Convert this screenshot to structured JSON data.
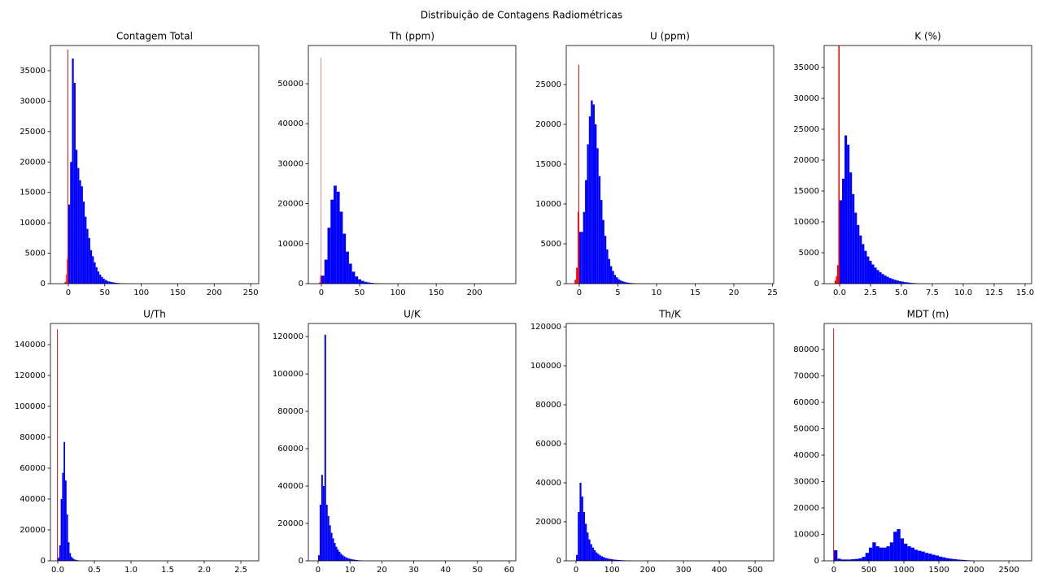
{
  "title": "Distribuição de Contagens Radiométricas",
  "chart_data": [
    {
      "type": "histogram",
      "title": "Contagem Total",
      "xlim": [
        -24.5,
        261
      ],
      "ylim": [
        0,
        39140
      ],
      "xticks": [
        0,
        50,
        100,
        150,
        200,
        250
      ],
      "yticks": [
        0,
        5000,
        10000,
        15000,
        20000,
        25000,
        30000,
        35000
      ],
      "series": [
        {
          "color": "#ff0000",
          "bins": [
            -5,
            -3,
            -2,
            -1,
            0
          ],
          "values": [
            300,
            1500,
            4000,
            38500
          ]
        },
        {
          "color": "#0000ff",
          "bins": [
            0,
            2.5,
            5,
            7.5,
            10,
            12.5,
            15,
            17.5,
            20,
            22.5,
            25,
            27.5,
            30,
            32.5,
            35,
            37.5,
            40,
            42.5,
            45,
            47.5,
            50,
            52.5,
            55,
            57.5,
            60,
            62.5,
            65,
            67.5,
            70,
            72.5,
            75,
            77.5,
            80
          ],
          "values": [
            13000,
            20000,
            37000,
            33000,
            22000,
            19000,
            17000,
            16000,
            13500,
            11000,
            9000,
            7500,
            5500,
            4500,
            3500,
            2700,
            2000,
            1500,
            1100,
            800,
            600,
            450,
            350,
            280,
            220,
            170,
            130,
            100,
            70,
            50,
            30,
            20
          ]
        }
      ]
    },
    {
      "type": "histogram",
      "title": "Th (ppm)",
      "xlim": [
        -17,
        254
      ],
      "ylim": [
        0,
        59550
      ],
      "xticks": [
        0,
        50,
        100,
        150,
        200
      ],
      "yticks": [
        0,
        10000,
        20000,
        30000,
        40000,
        50000
      ],
      "series": [
        {
          "color": "#ff0000",
          "bins": [
            -3,
            -1.5,
            -0.5,
            0
          ],
          "values": [
            300,
            2000,
            56500
          ]
        },
        {
          "color": "#0000ff",
          "bins": [
            0,
            4,
            8,
            12,
            16,
            20,
            24,
            28,
            32,
            36,
            40,
            44,
            48,
            52,
            56,
            60,
            64,
            68,
            72,
            76,
            80
          ],
          "values": [
            2000,
            6000,
            14000,
            21000,
            24500,
            23000,
            18000,
            12500,
            8000,
            5000,
            3000,
            1800,
            1100,
            700,
            450,
            300,
            200,
            120,
            80,
            50
          ]
        }
      ]
    },
    {
      "type": "histogram",
      "title": "U (ppm)",
      "xlim": [
        -1.68,
        25.16
      ],
      "ylim": [
        0,
        29898
      ],
      "xticks": [
        0,
        5,
        10,
        15,
        20,
        25
      ],
      "yticks": [
        0,
        5000,
        10000,
        15000,
        20000,
        25000
      ],
      "series": [
        {
          "color": "#ff0000",
          "bins": [
            -0.6,
            -0.4,
            -0.2,
            -0.1,
            0
          ],
          "values": [
            500,
            2000,
            9000,
            27500
          ]
        },
        {
          "color": "#0000ff",
          "bins": [
            0,
            0.25,
            0.5,
            0.75,
            1.0,
            1.25,
            1.5,
            1.75,
            2.0,
            2.25,
            2.5,
            2.75,
            3.0,
            3.25,
            3.5,
            3.75,
            4.0,
            4.25,
            4.5,
            4.75,
            5.0,
            5.25,
            5.5,
            5.75,
            6.0,
            6.25,
            6.5,
            6.75,
            7.0,
            7.25,
            7.5,
            7.75,
            8.0
          ],
          "values": [
            6500,
            6500,
            9000,
            13000,
            17500,
            21000,
            23000,
            22500,
            20000,
            17000,
            13500,
            10500,
            8000,
            6000,
            4300,
            3100,
            2200,
            1600,
            1100,
            800,
            550,
            400,
            300,
            220,
            160,
            120,
            90,
            70,
            50,
            40,
            30,
            20
          ]
        }
      ]
    },
    {
      "type": "histogram",
      "title": "K (%)",
      "xlim": [
        -1.25,
        15.53
      ],
      "ylim": [
        0,
        38553
      ],
      "xticks": [
        {
          "value": 0,
          "label": "0.0"
        },
        2.5,
        {
          "value": 5,
          "label": "5.0"
        },
        7.5,
        {
          "value": 10,
          "label": "10.0"
        },
        12.5,
        {
          "value": 15,
          "label": "15.0"
        }
      ],
      "yticks": [
        0,
        5000,
        10000,
        15000,
        20000,
        25000,
        30000,
        35000
      ],
      "series": [
        {
          "color": "#ff0000",
          "bins": [
            -0.4,
            -0.3,
            -0.2,
            -0.1,
            0
          ],
          "values": [
            500,
            1200,
            3000,
            38500
          ]
        },
        {
          "color": "#0000ff",
          "bins": [
            0,
            0.2,
            0.4,
            0.6,
            0.8,
            1.0,
            1.2,
            1.4,
            1.6,
            1.8,
            2.0,
            2.2,
            2.4,
            2.6,
            2.8,
            3.0,
            3.2,
            3.4,
            3.6,
            3.8,
            4.0,
            4.2,
            4.4,
            4.6,
            4.8,
            5.0,
            5.2,
            5.4,
            5.6,
            5.8,
            6.0,
            6.2,
            6.4
          ],
          "values": [
            13500,
            17000,
            24000,
            22500,
            18000,
            14500,
            11500,
            9500,
            7800,
            6400,
            5300,
            4400,
            3700,
            3100,
            2600,
            2200,
            1850,
            1550,
            1300,
            1100,
            900,
            750,
            620,
            500,
            400,
            320,
            250,
            200,
            150,
            110,
            80,
            50
          ]
        }
      ]
    },
    {
      "type": "histogram",
      "title": "U/Th",
      "xlim": [
        -0.1,
        2.744
      ],
      "ylim": [
        0,
        153700
      ],
      "xticks": [
        {
          "value": 0,
          "label": "0.0"
        },
        0.5,
        {
          "value": 1,
          "label": "1.0"
        },
        1.5,
        {
          "value": 2,
          "label": "2.0"
        },
        2.5
      ],
      "yticks": [
        0,
        20000,
        40000,
        60000,
        80000,
        100000,
        120000,
        140000
      ],
      "series": [
        {
          "color": "#ff0000",
          "bins": [
            -0.01,
            0
          ],
          "values": [
            150000
          ]
        },
        {
          "color": "#0000ff",
          "bins": [
            0,
            0.02,
            0.04,
            0.06,
            0.08,
            0.1,
            0.12,
            0.14,
            0.16,
            0.18,
            0.2,
            0.22,
            0.24,
            0.26,
            0.28,
            0.3,
            0.32
          ],
          "values": [
            2000,
            10000,
            40000,
            57000,
            77000,
            52000,
            30000,
            12000,
            5000,
            2500,
            1500,
            900,
            600,
            400,
            250,
            150
          ]
        }
      ]
    },
    {
      "type": "histogram",
      "title": "U/K",
      "xlim": [
        -3.06,
        62.04
      ],
      "ylim": [
        0,
        127000
      ],
      "xticks": [
        0,
        10,
        20,
        30,
        40,
        50,
        60
      ],
      "yticks": [
        0,
        20000,
        40000,
        60000,
        80000,
        100000,
        120000
      ],
      "series": [
        {
          "color": "#0000ff",
          "bins": [
            0,
            0.5,
            1,
            1.5,
            2,
            2.5,
            3,
            3.5,
            4,
            4.5,
            5,
            5.5,
            6,
            6.5,
            7,
            7.5,
            8,
            8.5,
            9,
            9.5,
            10,
            10.5,
            11,
            11.5,
            12,
            12.5,
            13,
            13.5,
            14
          ],
          "values": [
            3000,
            30000,
            46000,
            40000,
            121000,
            30000,
            24000,
            19000,
            15000,
            12000,
            9500,
            7500,
            6000,
            4800,
            3800,
            3000,
            2400,
            1900,
            1500,
            1200,
            1000,
            800,
            650,
            500,
            400,
            300,
            220,
            150
          ]
        }
      ]
    },
    {
      "type": "histogram",
      "title": "Th/K",
      "xlim": [
        -27.3,
        552
      ],
      "ylim": [
        0,
        121700
      ],
      "xticks": [
        0,
        100,
        200,
        300,
        400,
        500
      ],
      "yticks": [
        0,
        20000,
        40000,
        60000,
        80000,
        100000,
        120000
      ],
      "series": [
        {
          "color": "#0000ff",
          "bins": [
            0,
            5,
            10,
            15,
            20,
            25,
            30,
            35,
            40,
            45,
            50,
            55,
            60,
            65,
            70,
            75,
            80,
            85,
            90,
            95,
            100,
            105,
            110,
            115,
            120,
            125,
            130,
            135,
            140,
            145,
            150,
            155,
            160
          ],
          "values": [
            3000,
            25000,
            40000,
            33000,
            25000,
            19000,
            14500,
            11000,
            8500,
            6800,
            5400,
            4300,
            3500,
            2800,
            2300,
            1900,
            1500,
            1250,
            1050,
            900,
            750,
            630,
            530,
            450,
            380,
            320,
            270,
            230,
            190,
            160,
            130,
            100
          ]
        }
      ]
    },
    {
      "type": "histogram",
      "title": "MDT (m)",
      "xlim": [
        -139.5,
        2825
      ],
      "ylim": [
        0,
        89850
      ],
      "xticks": [
        0,
        500,
        1000,
        1500,
        2000,
        2500
      ],
      "yticks": [
        0,
        10000,
        20000,
        30000,
        40000,
        50000,
        60000,
        70000,
        80000
      ],
      "series": [
        {
          "color": "#ff0000",
          "bins": [
            -10,
            0
          ],
          "values": [
            88000
          ]
        },
        {
          "color": "#0000ff",
          "bins": [
            0,
            50,
            100,
            150,
            200,
            250,
            300,
            350,
            400,
            450,
            500,
            550,
            600,
            650,
            700,
            750,
            800,
            850,
            900,
            950,
            1000,
            1050,
            1100,
            1150,
            1200,
            1250,
            1300,
            1350,
            1400,
            1450,
            1500,
            1550,
            1600,
            1650,
            1700,
            1750,
            1800,
            1850,
            1900,
            1950,
            2000
          ],
          "values": [
            4000,
            800,
            500,
            500,
            500,
            600,
            700,
            900,
            1500,
            3000,
            5000,
            7000,
            5500,
            5000,
            5000,
            5500,
            7000,
            11000,
            12000,
            8500,
            6500,
            5500,
            5000,
            4200,
            3800,
            3500,
            3000,
            2700,
            2300,
            2000,
            1600,
            1300,
            1000,
            800,
            650,
            500,
            400,
            300,
            200,
            120
          ]
        }
      ]
    }
  ]
}
